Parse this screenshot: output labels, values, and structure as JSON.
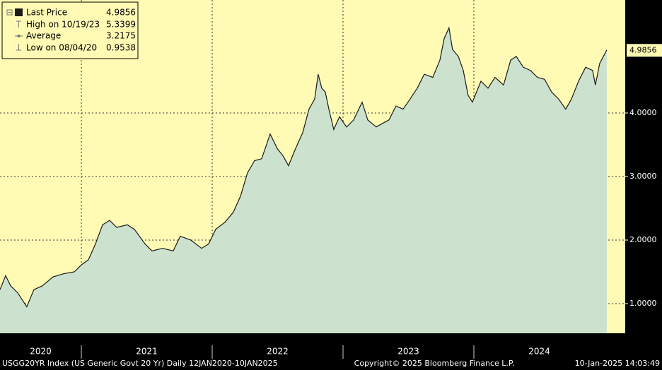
{
  "chart_data": {
    "type": "area",
    "x": [
      2020.378,
      2020.421,
      2020.459,
      2020.513,
      2020.583,
      2020.637,
      2020.702,
      2020.783,
      2020.864,
      2020.946,
      2021.0,
      2021.054,
      2021.108,
      2021.162,
      2021.216,
      2021.27,
      2021.351,
      2021.405,
      2021.486,
      2021.54,
      2021.621,
      2021.702,
      2021.756,
      2021.837,
      2021.919,
      2021.973,
      2022.027,
      2022.097,
      2022.162,
      2022.216,
      2022.27,
      2022.324,
      2022.378,
      2022.443,
      2022.497,
      2022.54,
      2022.583,
      2022.637,
      2022.692,
      2022.74,
      2022.783,
      2022.81,
      2022.837,
      2022.864,
      2022.892,
      2022.929,
      2022.973,
      2023.027,
      2023.081,
      2023.146,
      2023.189,
      2023.254,
      2023.297,
      2023.351,
      2023.405,
      2023.459,
      2023.513,
      2023.567,
      2023.621,
      2023.686,
      2023.74,
      2023.773,
      2023.81,
      2023.837,
      2023.881,
      2023.919,
      2023.956,
      2023.989,
      2024.054,
      2024.108,
      2024.162,
      2024.227,
      2024.281,
      2024.324,
      2024.378,
      2024.432,
      2024.486,
      2024.54,
      2024.594,
      2024.648,
      2024.702,
      2024.746,
      2024.8,
      2024.854,
      2024.908,
      2024.929,
      2024.962,
      2025.016
    ],
    "series": [
      {
        "name": "Last Price",
        "color": "#1a1a1a",
        "fill": "#cde1cf",
        "values": [
          1.22,
          1.44,
          1.28,
          1.17,
          0.95,
          1.22,
          1.28,
          1.42,
          1.47,
          1.5,
          1.61,
          1.69,
          1.94,
          2.24,
          2.31,
          2.2,
          2.24,
          2.17,
          1.94,
          1.83,
          1.87,
          1.83,
          2.06,
          2.0,
          1.87,
          1.94,
          2.17,
          2.28,
          2.44,
          2.69,
          3.06,
          3.25,
          3.28,
          3.67,
          3.44,
          3.33,
          3.17,
          3.44,
          3.69,
          4.06,
          4.22,
          4.61,
          4.39,
          4.33,
          4.06,
          3.74,
          3.94,
          3.78,
          3.89,
          4.17,
          3.89,
          3.78,
          3.83,
          3.89,
          4.11,
          4.06,
          4.22,
          4.39,
          4.61,
          4.56,
          4.83,
          5.17,
          5.34,
          5.0,
          4.89,
          4.67,
          4.28,
          4.17,
          4.5,
          4.39,
          4.56,
          4.44,
          4.83,
          4.89,
          4.72,
          4.67,
          4.56,
          4.53,
          4.33,
          4.22,
          4.06,
          4.22,
          4.5,
          4.72,
          4.67,
          4.44,
          4.78,
          4.99
        ],
        "last": 4.9856
      }
    ],
    "stats": [
      {
        "label": "High on 10/19/23",
        "value": 5.3399
      },
      {
        "label": "Average",
        "value": 3.2175
      },
      {
        "label": "Low on 08/04/20",
        "value": 0.9538
      }
    ],
    "xlim": [
      2020.378,
      2025.157
    ],
    "xticks": [
      {
        "value": 2020,
        "label": "2020"
      },
      {
        "value": 2021,
        "label": "2021"
      },
      {
        "value": 2022,
        "label": "2022"
      },
      {
        "value": 2023,
        "label": "2023"
      },
      {
        "value": 2024,
        "label": "2024"
      }
    ],
    "ylim": [
      0.533,
      5.778
    ],
    "yticks": [
      {
        "value": 1,
        "label": "1.0000"
      },
      {
        "value": 2,
        "label": "2.0000"
      },
      {
        "value": 3,
        "label": "3.0000"
      },
      {
        "value": 4,
        "label": "4.0000"
      }
    ],
    "grid": true,
    "background": "#fffab4",
    "footer_left": "USGG20YR Index (US Generic Govt 20 Yr)  Daily 12JAN2020-10JAN2025",
    "footer_center": "Copyright© 2025 Bloomberg Finance L.P.",
    "footer_right": "10-Jan-2025 14:03:49"
  }
}
